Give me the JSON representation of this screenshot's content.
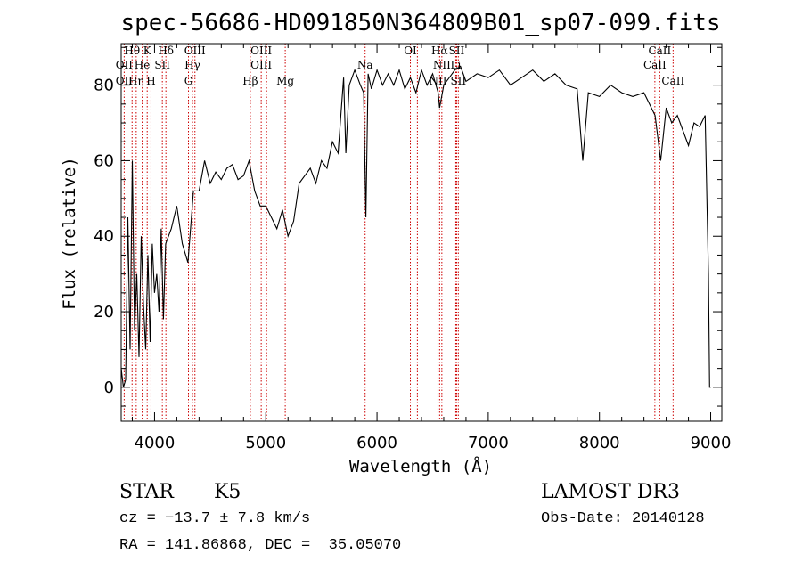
{
  "chart_data": {
    "type": "line",
    "title": "spec-56686-HD091850N364809B01_sp07-099.fits",
    "xlabel": "Wavelength (Å)",
    "ylabel": "Flux (relative)",
    "xlim": [
      3700,
      9100
    ],
    "ylim": [
      -9,
      91
    ],
    "xticks": [
      4000,
      5000,
      6000,
      7000,
      8000,
      9000
    ],
    "yticks": [
      0,
      20,
      40,
      60,
      80
    ],
    "series": [
      {
        "name": "flux",
        "x": [
          3700,
          3720,
          3740,
          3760,
          3780,
          3800,
          3820,
          3840,
          3860,
          3880,
          3900,
          3920,
          3940,
          3960,
          3980,
          4000,
          4020,
          4040,
          4060,
          4080,
          4100,
          4150,
          4200,
          4250,
          4300,
          4350,
          4400,
          4450,
          4500,
          4550,
          4600,
          4650,
          4700,
          4750,
          4800,
          4850,
          4900,
          4950,
          5000,
          5050,
          5100,
          5150,
          5200,
          5250,
          5300,
          5350,
          5400,
          5450,
          5500,
          5550,
          5600,
          5650,
          5700,
          5720,
          5750,
          5800,
          5850,
          5880,
          5900,
          5920,
          5950,
          6000,
          6050,
          6100,
          6150,
          6200,
          6250,
          6300,
          6350,
          6400,
          6450,
          6500,
          6550,
          6563,
          6600,
          6650,
          6700,
          6750,
          6800,
          6900,
          7000,
          7100,
          7200,
          7300,
          7400,
          7500,
          7600,
          7700,
          7800,
          7850,
          7900,
          8000,
          8100,
          8200,
          8300,
          8400,
          8500,
          8550,
          8600,
          8650,
          8700,
          8750,
          8800,
          8850,
          8900,
          8950,
          8980,
          8990,
          9000
        ],
        "values": [
          5,
          0,
          2,
          45,
          10,
          60,
          15,
          30,
          8,
          40,
          22,
          10,
          35,
          12,
          38,
          25,
          30,
          20,
          42,
          18,
          38,
          42,
          48,
          38,
          33,
          52,
          52,
          60,
          54,
          57,
          55,
          58,
          59,
          55,
          56,
          60,
          52,
          48,
          48,
          45,
          42,
          47,
          40,
          44,
          54,
          56,
          58,
          54,
          60,
          58,
          65,
          62,
          82,
          62,
          80,
          84,
          80,
          78,
          45,
          83,
          79,
          84,
          80,
          83,
          80,
          84,
          79,
          82,
          78,
          84,
          80,
          83,
          78,
          74,
          80,
          82,
          84,
          85,
          81,
          83,
          82,
          84,
          80,
          82,
          84,
          81,
          83,
          80,
          79,
          60,
          78,
          77,
          80,
          78,
          77,
          78,
          72,
          60,
          74,
          70,
          72,
          68,
          64,
          70,
          69,
          72,
          30,
          0,
          0
        ]
      }
    ],
    "line_labels": [
      {
        "label": "Hθ",
        "wavelength": 3798,
        "row": 1
      },
      {
        "label": "OII",
        "wavelength": 3727,
        "row": 2
      },
      {
        "label": "OII",
        "wavelength": 3727,
        "row": 3
      },
      {
        "label": "He",
        "wavelength": 3889,
        "row": 2
      },
      {
        "label": "Hη",
        "wavelength": 3835,
        "row": 3
      },
      {
        "label": "K",
        "wavelength": 3934,
        "row": 1
      },
      {
        "label": "H",
        "wavelength": 3968,
        "row": 3
      },
      {
        "label": "SII",
        "wavelength": 4070,
        "row": 2
      },
      {
        "label": "Hδ",
        "wavelength": 4102,
        "row": 1
      },
      {
        "label": "OIII",
        "wavelength": 4363,
        "row": 1
      },
      {
        "label": "Hγ",
        "wavelength": 4341,
        "row": 2
      },
      {
        "label": "G",
        "wavelength": 4305,
        "row": 3
      },
      {
        "label": "OIII",
        "wavelength": 4959,
        "row": 1
      },
      {
        "label": "OIII",
        "wavelength": 4959,
        "row": 2
      },
      {
        "label": "Hβ",
        "wavelength": 4861,
        "row": 3
      },
      {
        "label": "Mg",
        "wavelength": 5175,
        "row": 3
      },
      {
        "label": "Na",
        "wavelength": 5893,
        "row": 2
      },
      {
        "label": "OI",
        "wavelength": 6300,
        "row": 1
      },
      {
        "label": "Hα",
        "wavelength": 6563,
        "row": 1
      },
      {
        "label": "SII",
        "wavelength": 6716,
        "row": 1
      },
      {
        "label": "NII",
        "wavelength": 6583,
        "row": 2
      },
      {
        "label": "Li",
        "wavelength": 6708,
        "row": 2
      },
      {
        "label": "NII",
        "wavelength": 6548,
        "row": 3
      },
      {
        "label": "SII",
        "wavelength": 6731,
        "row": 3
      },
      {
        "label": "CaII",
        "wavelength": 8542,
        "row": 1
      },
      {
        "label": "CaII",
        "wavelength": 8498,
        "row": 2
      },
      {
        "label": "CaII",
        "wavelength": 8662,
        "row": 3
      }
    ],
    "marker_lines": [
      3727,
      3798,
      3835,
      3889,
      3934,
      3968,
      4070,
      4102,
      4305,
      4341,
      4363,
      4861,
      4959,
      5007,
      5175,
      5893,
      6300,
      6363,
      6548,
      6563,
      6583,
      6708,
      6716,
      6731,
      8498,
      8542,
      8662
    ]
  },
  "info": {
    "object_type": "STAR",
    "subclass": "K5",
    "survey": "LAMOST DR3",
    "cz": "cz = −13.7 ± 7.8 km/s",
    "obs_date": "Obs-Date: 20140128",
    "coords": "RA = 141.86868, DEC =  35.05070"
  },
  "colors": {
    "marker_line": "#cc0000",
    "spectrum": "#000000",
    "axes": "#000000"
  }
}
